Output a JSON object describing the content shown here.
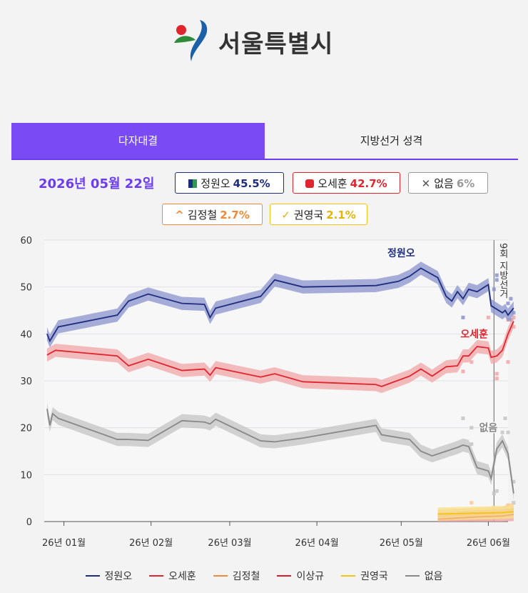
{
  "header": {
    "logo_text": "서울특별시"
  },
  "tabs": [
    {
      "label": "다자대결",
      "active": true
    },
    {
      "label": "지방선거 성격",
      "active": false
    }
  ],
  "summary": {
    "date": "2026년 05월 22일",
    "badges": [
      {
        "name": "정원오",
        "value": "45.5%",
        "color": "#1f2d7e"
      },
      {
        "name": "오세훈",
        "value": "42.7%",
        "color": "#e0252f"
      },
      {
        "name": "없음",
        "value": "6%",
        "color": "#999999"
      },
      {
        "name": "김정철",
        "value": "2.7%",
        "color": "#f08a3a"
      },
      {
        "name": "권영국",
        "value": "2.1%",
        "color": "#f2c415"
      }
    ]
  },
  "chart_data": {
    "type": "line",
    "y_ticks": [
      "60",
      "50",
      "40",
      "30",
      "20",
      "10",
      "0"
    ],
    "x_ticks": [
      "26년 01월",
      "26년 02월",
      "26년 03월",
      "26년 04월",
      "26년 05월",
      "26년 06월"
    ],
    "ylim": [
      0,
      60
    ],
    "xlim": [
      "2025-12-25",
      "2026-06-08"
    ],
    "event_label": "9회 지방선거",
    "event_date": "2026-06-03",
    "series": [
      {
        "name": "정원오",
        "color": "#1f2d7e",
        "band_color": "#8a93cc",
        "label": "정원오",
        "points": [
          [
            "2025-12-26",
            40
          ],
          [
            "2025-12-27",
            38.5
          ],
          [
            "2025-12-28",
            39.5
          ],
          [
            "2025-12-30",
            41.5
          ],
          [
            "2026-01-20",
            44
          ],
          [
            "2026-01-24",
            47
          ],
          [
            "2026-01-31",
            48.5
          ],
          [
            "2026-02-12",
            46.5
          ],
          [
            "2026-02-20",
            46.3
          ],
          [
            "2026-02-22",
            43.5
          ],
          [
            "2026-02-24",
            45.5
          ],
          [
            "2026-03-12",
            48
          ],
          [
            "2026-03-17",
            51.5
          ],
          [
            "2026-03-27",
            50
          ],
          [
            "2026-04-22",
            50.3
          ],
          [
            "2026-04-30",
            51.2
          ],
          [
            "2026-05-04",
            52.3
          ],
          [
            "2026-05-08",
            54
          ],
          [
            "2026-05-14",
            52
          ],
          [
            "2026-05-17",
            48
          ],
          [
            "2026-05-19",
            47
          ],
          [
            "2026-05-21",
            49
          ],
          [
            "2026-05-23",
            47.5
          ],
          [
            "2026-05-25",
            49.5
          ],
          [
            "2026-05-28",
            49
          ],
          [
            "2026-06-01",
            50.5
          ],
          [
            "2026-06-02",
            46
          ],
          [
            "2026-06-06",
            44.5
          ],
          [
            "2026-06-07",
            45
          ],
          [
            "2026-06-08",
            44
          ],
          [
            "2026-06-10",
            45.5
          ]
        ]
      },
      {
        "name": "오세훈",
        "color": "#e0252f",
        "band_color": "#f2a5a8",
        "label": "오세훈",
        "points": [
          [
            "2025-12-26",
            35.5
          ],
          [
            "2025-12-29",
            36.5
          ],
          [
            "2026-01-20",
            35.3
          ],
          [
            "2026-01-24",
            33.2
          ],
          [
            "2026-01-31",
            34.6
          ],
          [
            "2026-02-12",
            32.2
          ],
          [
            "2026-02-20",
            32.5
          ],
          [
            "2026-02-22",
            31.2
          ],
          [
            "2026-02-24",
            32.8
          ],
          [
            "2026-03-12",
            30.8
          ],
          [
            "2026-03-17",
            31.5
          ],
          [
            "2026-03-27",
            29.8
          ],
          [
            "2026-04-22",
            29.2
          ],
          [
            "2026-04-24",
            28.8
          ],
          [
            "2026-05-04",
            31
          ],
          [
            "2026-05-08",
            32.5
          ],
          [
            "2026-05-12",
            31
          ],
          [
            "2026-05-17",
            33
          ],
          [
            "2026-05-21",
            33.2
          ],
          [
            "2026-05-23",
            35.3
          ],
          [
            "2026-05-25",
            35.3
          ],
          [
            "2026-05-28",
            37.3
          ],
          [
            "2026-06-01",
            37
          ],
          [
            "2026-06-02",
            35
          ],
          [
            "2026-06-04",
            35.3
          ],
          [
            "2026-06-06",
            36.5
          ],
          [
            "2026-06-08",
            40
          ],
          [
            "2026-06-10",
            42.7
          ]
        ]
      },
      {
        "name": "김정철",
        "color": "#f08a3a",
        "band_color": "#f8c898",
        "label": "",
        "points": [
          [
            "2026-05-14",
            1.2
          ],
          [
            "2026-05-28",
            1.5
          ],
          [
            "2026-06-06",
            1.8
          ],
          [
            "2026-06-10",
            2.7
          ]
        ]
      },
      {
        "name": "이상규",
        "color": "#d81e2b",
        "band_color": "#eea0a4",
        "label": "",
        "points": [
          [
            "2026-05-14",
            0.5
          ],
          [
            "2026-05-28",
            1
          ],
          [
            "2026-06-06",
            1.2
          ],
          [
            "2026-06-10",
            1.5
          ]
        ]
      },
      {
        "name": "권영국",
        "color": "#f2c415",
        "band_color": "#f8e28a",
        "label": "",
        "points": [
          [
            "2026-05-14",
            1.6
          ],
          [
            "2026-05-28",
            1.8
          ],
          [
            "2026-06-06",
            1.9
          ],
          [
            "2026-06-10",
            2.1
          ]
        ]
      },
      {
        "name": "없음",
        "color": "#888888",
        "band_color": "#c4c4c4",
        "label": "없음",
        "points": [
          [
            "2025-12-26",
            24
          ],
          [
            "2025-12-27",
            20.5
          ],
          [
            "2025-12-28",
            23
          ],
          [
            "2025-12-30",
            22
          ],
          [
            "2026-01-20",
            17.5
          ],
          [
            "2026-01-24",
            17.5
          ],
          [
            "2026-01-31",
            17.3
          ],
          [
            "2026-02-12",
            21.5
          ],
          [
            "2026-02-20",
            21.2
          ],
          [
            "2026-02-22",
            20.8
          ],
          [
            "2026-02-24",
            21.8
          ],
          [
            "2026-03-12",
            17.2
          ],
          [
            "2026-03-17",
            17
          ],
          [
            "2026-03-27",
            17.8
          ],
          [
            "2026-04-22",
            20.5
          ],
          [
            "2026-04-24",
            18.5
          ],
          [
            "2026-05-04",
            17.5
          ],
          [
            "2026-05-08",
            15
          ],
          [
            "2026-05-12",
            14
          ],
          [
            "2026-05-21",
            15.8
          ],
          [
            "2026-05-23",
            16.3
          ],
          [
            "2026-05-25",
            16
          ],
          [
            "2026-05-28",
            11.5
          ],
          [
            "2026-06-01",
            10.8
          ],
          [
            "2026-06-02",
            9.2
          ],
          [
            "2026-06-04",
            15.5
          ],
          [
            "2026-06-06",
            17.2
          ],
          [
            "2026-06-08",
            14.5
          ],
          [
            "2026-06-10",
            6
          ]
        ]
      }
    ],
    "scatter": [
      {
        "series": "정원오",
        "date": "2026-05-23",
        "value": 43.5
      },
      {
        "series": "정원오",
        "date": "2026-06-04",
        "value": 51.5
      },
      {
        "series": "정원오",
        "date": "2026-06-04",
        "value": 52.5
      },
      {
        "series": "정원오",
        "date": "2026-06-03",
        "value": 49.5
      },
      {
        "series": "정원오",
        "date": "2026-06-09",
        "value": 43
      },
      {
        "series": "정원오",
        "date": "2026-06-09",
        "value": 47.5
      },
      {
        "series": "정원오",
        "date": "2026-06-10",
        "value": 44.5
      },
      {
        "series": "정원오",
        "date": "2026-06-08",
        "value": 46.5
      },
      {
        "series": "오세훈",
        "date": "2026-05-23",
        "value": 32
      },
      {
        "series": "오세훈",
        "date": "2026-05-26",
        "value": 34
      },
      {
        "series": "오세훈",
        "date": "2026-06-04",
        "value": 31.5
      },
      {
        "series": "오세훈",
        "date": "2026-06-04",
        "value": 30.5
      },
      {
        "series": "오세훈",
        "date": "2026-06-08",
        "value": 34
      },
      {
        "series": "오세훈",
        "date": "2026-06-10",
        "value": 41.5
      },
      {
        "series": "오세훈",
        "date": "2026-06-10",
        "value": 43.5
      },
      {
        "series": "오세훈",
        "date": "2026-06-01",
        "value": 43.5
      },
      {
        "series": "오세훈",
        "date": "2026-06-08",
        "value": 43
      },
      {
        "series": "없음",
        "date": "2026-05-23",
        "value": 22
      },
      {
        "series": "없음",
        "date": "2026-05-26",
        "value": 16.5
      },
      {
        "series": "없음",
        "date": "2026-06-03",
        "value": 6
      },
      {
        "series": "없음",
        "date": "2026-06-04",
        "value": 6.5
      },
      {
        "series": "없음",
        "date": "2026-06-06",
        "value": 19
      },
      {
        "series": "없음",
        "date": "2026-06-07",
        "value": 22
      },
      {
        "series": "없음",
        "date": "2026-06-08",
        "value": 19
      },
      {
        "series": "없음",
        "date": "2026-06-10",
        "value": 8.5
      },
      {
        "series": "없음",
        "date": "2026-06-10",
        "value": 4
      },
      {
        "series": "없음",
        "date": "2026-05-26",
        "value": 20
      },
      {
        "series": "김정철",
        "date": "2026-05-26",
        "value": 4
      },
      {
        "series": "권영국",
        "date": "2026-06-03",
        "value": 3
      },
      {
        "series": "김정철",
        "date": "2026-06-08",
        "value": 3.5
      },
      {
        "series": "권영국",
        "date": "2026-05-28",
        "value": 2.5
      }
    ]
  },
  "legend": [
    {
      "name": "정원오",
      "color": "#1f2d7e"
    },
    {
      "name": "오세훈",
      "color": "#e0252f"
    },
    {
      "name": "김정철",
      "color": "#f08a3a"
    },
    {
      "name": "이상규",
      "color": "#d81e2b"
    },
    {
      "name": "권영국",
      "color": "#f2c415"
    },
    {
      "name": "없음",
      "color": "#888888"
    }
  ]
}
